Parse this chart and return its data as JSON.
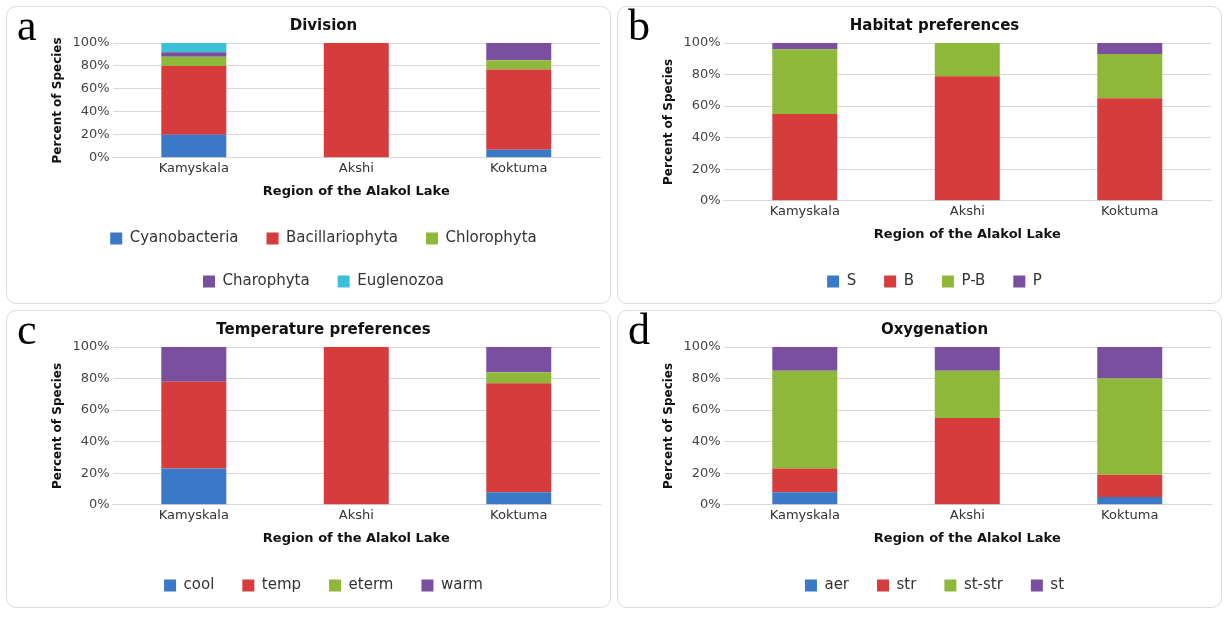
{
  "chart_data": [
    {
      "type": "bar",
      "title": "Division",
      "xlabel": "Region of the Alakol Lake",
      "ylabel": "Percent of Species",
      "annotations": [
        "a"
      ],
      "categories": [
        "Kamyskala",
        "Akshi",
        "Koktuma"
      ],
      "stacked": true,
      "ylim": [
        0,
        100
      ],
      "yticks": [
        {
          "value": 0,
          "label": "0%"
        },
        {
          "value": 20,
          "label": "20%"
        },
        {
          "value": 40,
          "label": "40%"
        },
        {
          "value": 60,
          "label": "60%"
        },
        {
          "value": 80,
          "label": "80%"
        },
        {
          "value": 100,
          "label": "100%"
        }
      ],
      "grid": "y",
      "legend": "bottom",
      "series": [
        {
          "name": "Cyanobacteria",
          "color": "#3a78c8",
          "values": [
            20,
            0,
            7
          ]
        },
        {
          "name": "Bacillariophyta",
          "color": "#d63c3c",
          "values": [
            60,
            100,
            70
          ]
        },
        {
          "name": "Chlorophyta",
          "color": "#8db83a",
          "values": [
            8,
            0,
            8
          ]
        },
        {
          "name": "Charophyta",
          "color": "#7a4fa0",
          "values": [
            4,
            0,
            15
          ]
        },
        {
          "name": "Euglenozoa",
          "color": "#3cc0d8",
          "values": [
            8,
            0,
            0
          ]
        }
      ]
    },
    {
      "type": "bar",
      "title": "Habitat preferences",
      "xlabel": "Region of the Alakol Lake",
      "ylabel": "Percent of Species",
      "annotations": [
        "b"
      ],
      "categories": [
        "Kamyskala",
        "Akshi",
        "Koktuma"
      ],
      "stacked": true,
      "ylim": [
        0,
        100
      ],
      "yticks": [
        {
          "value": 0,
          "label": "0%"
        },
        {
          "value": 20,
          "label": "20%"
        },
        {
          "value": 40,
          "label": "40%"
        },
        {
          "value": 60,
          "label": "60%"
        },
        {
          "value": 80,
          "label": "80%"
        },
        {
          "value": 100,
          "label": "100%"
        }
      ],
      "grid": "y",
      "legend": "bottom",
      "series": [
        {
          "name": "S",
          "color": "#3a78c8",
          "values": [
            0,
            0,
            0
          ]
        },
        {
          "name": "B",
          "color": "#d63c3c",
          "values": [
            55,
            79,
            65
          ]
        },
        {
          "name": "P-B",
          "color": "#8db83a",
          "values": [
            41,
            21,
            28
          ]
        },
        {
          "name": "P",
          "color": "#7a4fa0",
          "values": [
            4,
            0,
            7
          ]
        }
      ]
    },
    {
      "type": "bar",
      "title": "Temperature preferences",
      "xlabel": "Region of the Alakol Lake",
      "ylabel": "Percent of Species",
      "annotations": [
        "c"
      ],
      "categories": [
        "Kamyskala",
        "Akshi",
        "Koktuma"
      ],
      "stacked": true,
      "ylim": [
        0,
        100
      ],
      "yticks": [
        {
          "value": 0,
          "label": "0%"
        },
        {
          "value": 20,
          "label": "20%"
        },
        {
          "value": 40,
          "label": "40%"
        },
        {
          "value": 60,
          "label": "60%"
        },
        {
          "value": 80,
          "label": "80%"
        },
        {
          "value": 100,
          "label": "100%"
        }
      ],
      "grid": "y",
      "legend": "bottom",
      "series": [
        {
          "name": "cool",
          "color": "#3a78c8",
          "values": [
            23,
            0,
            8
          ]
        },
        {
          "name": "temp",
          "color": "#d63c3c",
          "values": [
            55,
            100,
            69
          ]
        },
        {
          "name": "eterm",
          "color": "#8db83a",
          "values": [
            0,
            0,
            7
          ]
        },
        {
          "name": "warm",
          "color": "#7a4fa0",
          "values": [
            22,
            0,
            16
          ]
        }
      ]
    },
    {
      "type": "bar",
      "title": "Oxygenation",
      "xlabel": "Region of the Alakol Lake",
      "ylabel": "Percent of Species",
      "annotations": [
        "d"
      ],
      "categories": [
        "Kamyskala",
        "Akshi",
        "Koktuma"
      ],
      "stacked": true,
      "ylim": [
        0,
        100
      ],
      "yticks": [
        {
          "value": 0,
          "label": "0%"
        },
        {
          "value": 20,
          "label": "20%"
        },
        {
          "value": 40,
          "label": "40%"
        },
        {
          "value": 60,
          "label": "60%"
        },
        {
          "value": 80,
          "label": "80%"
        },
        {
          "value": 100,
          "label": "100%"
        }
      ],
      "grid": "y",
      "legend": "bottom",
      "series": [
        {
          "name": "aer",
          "color": "#3a78c8",
          "values": [
            8,
            0,
            5
          ]
        },
        {
          "name": "str",
          "color": "#d63c3c",
          "values": [
            15,
            55,
            14
          ]
        },
        {
          "name": "st-str",
          "color": "#8db83a",
          "values": [
            62,
            30,
            61
          ]
        },
        {
          "name": "st",
          "color": "#7a4fa0",
          "values": [
            15,
            15,
            20
          ]
        }
      ]
    }
  ]
}
